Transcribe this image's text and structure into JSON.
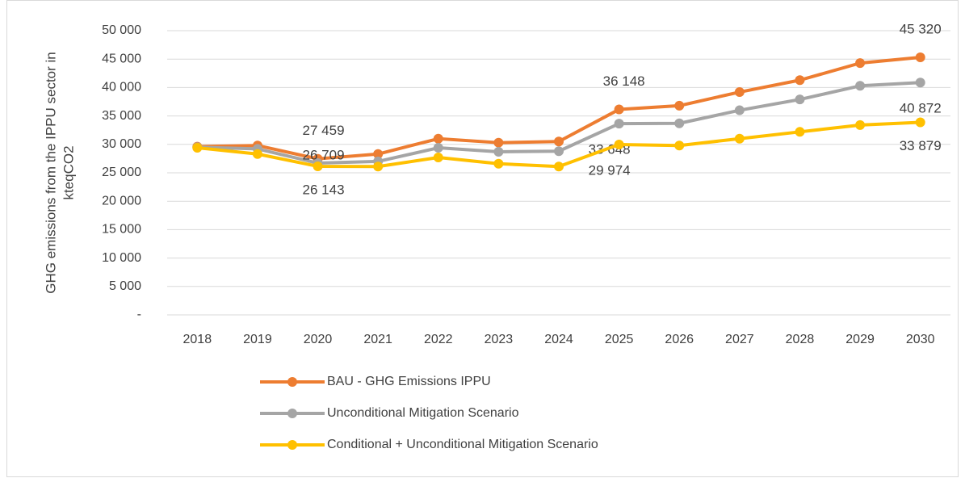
{
  "chart_data": {
    "type": "line",
    "ylabel": [
      "GHG emissions from the IPPU sector in",
      "kteqCO2"
    ],
    "categories": [
      "2018",
      "2019",
      "2020",
      "2021",
      "2022",
      "2023",
      "2024",
      "2025",
      "2026",
      "2027",
      "2028",
      "2029",
      "2030"
    ],
    "ylim": [
      0,
      50000
    ],
    "yticks": [
      {
        "value": 0,
        "label": "-"
      },
      {
        "value": 5000,
        "label": "5 000"
      },
      {
        "value": 10000,
        "label": "10 000"
      },
      {
        "value": 15000,
        "label": "15 000"
      },
      {
        "value": 20000,
        "label": "20 000"
      },
      {
        "value": 25000,
        "label": "25 000"
      },
      {
        "value": 30000,
        "label": "30 000"
      },
      {
        "value": 35000,
        "label": "35 000"
      },
      {
        "value": 40000,
        "label": "40 000"
      },
      {
        "value": 45000,
        "label": "45 000"
      },
      {
        "value": 50000,
        "label": "50 000"
      }
    ],
    "grid": true,
    "legend": "bottom",
    "series": [
      {
        "name": "BAU - GHG Emissions IPPU",
        "color": "#ed7d31",
        "values": [
          29600,
          29800,
          27459,
          28300,
          31000,
          30300,
          30500,
          36148,
          36800,
          39200,
          41300,
          44300,
          45320
        ],
        "value_labels": [
          null,
          null,
          "27 459",
          null,
          null,
          null,
          null,
          "36 148",
          null,
          null,
          null,
          null,
          "45 320"
        ]
      },
      {
        "name": "Unconditional Mitigation Scenario",
        "color": "#a5a5a5",
        "values": [
          29500,
          29200,
          26709,
          27000,
          29400,
          28700,
          28800,
          33648,
          33700,
          36000,
          37900,
          40300,
          40872
        ],
        "value_labels": [
          null,
          null,
          "26 709",
          null,
          null,
          null,
          null,
          "33 648",
          null,
          null,
          null,
          null,
          "40 872"
        ]
      },
      {
        "name": "Conditional + Unconditional Mitigation Scenario",
        "color": "#ffc000",
        "values": [
          29400,
          28300,
          26143,
          26100,
          27700,
          26600,
          26100,
          29974,
          29800,
          31000,
          32200,
          33400,
          33879
        ],
        "value_labels": [
          null,
          null,
          "26 143",
          null,
          null,
          null,
          null,
          "29 974",
          null,
          null,
          null,
          null,
          "33 879"
        ]
      }
    ]
  }
}
